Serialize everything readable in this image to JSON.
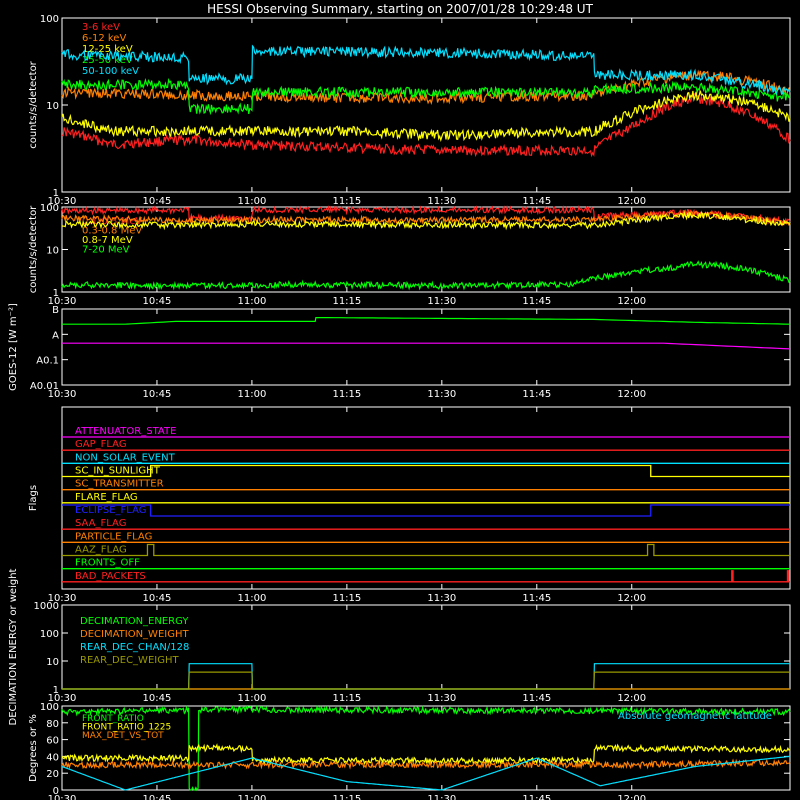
{
  "title": "HESSI Observing Summary, starting on 2007/01/28 10:29:48 UT",
  "time_ticks": [
    "10:30",
    "10:45",
    "11:00",
    "11:15",
    "11:30",
    "11:45",
    "12:00"
  ],
  "time_range_min": [
    0,
    115
  ],
  "chart_data": [
    {
      "id": "low-energy",
      "type": "line",
      "ylabel": "counts/s/detector",
      "yscale": "log",
      "ylim": [
        1,
        100
      ],
      "ytick_labels": [
        "1",
        "10",
        "100"
      ],
      "legend_placement": "top-left",
      "series": [
        {
          "name": "3-6 keV",
          "color": "#ff2020",
          "x": [
            0,
            8,
            20,
            30,
            45,
            60,
            75,
            84,
            90,
            95,
            100,
            105,
            110,
            115
          ],
          "y": [
            5,
            3.5,
            4,
            3.5,
            3.2,
            3,
            3,
            3,
            5.5,
            9,
            12,
            10,
            7,
            4
          ]
        },
        {
          "name": "6-12 keV",
          "color": "#ff8000",
          "x": [
            0,
            20,
            45,
            60,
            84,
            90,
            95,
            100,
            105,
            110,
            115
          ],
          "y": [
            14,
            13,
            12,
            12,
            13,
            17,
            20,
            22,
            21,
            18,
            14
          ]
        },
        {
          "name": "12-25 keV",
          "color": "#ffff00",
          "x": [
            0,
            8,
            20,
            45,
            60,
            84,
            90,
            95,
            100,
            105,
            110,
            115
          ],
          "y": [
            7,
            5,
            5,
            5,
            4.5,
            5,
            8,
            11,
            13,
            12,
            10,
            7
          ]
        },
        {
          "name": "25-50 keV",
          "color": "#00ff00",
          "x": [
            0,
            10,
            20,
            20.1,
            30,
            30.1,
            45,
            60,
            84,
            84.1,
            100,
            115
          ],
          "y": [
            17,
            17,
            17,
            9,
            9,
            14,
            14,
            14,
            14,
            15,
            16,
            12
          ]
        },
        {
          "name": "50-100 keV",
          "color": "#00e0ff",
          "x": [
            0,
            20,
            20.1,
            30,
            30.1,
            60,
            84,
            84.1,
            100,
            115
          ],
          "y": [
            38,
            35,
            20,
            20,
            42,
            40,
            36,
            22,
            22,
            14
          ]
        }
      ]
    },
    {
      "id": "high-energy",
      "type": "line",
      "ylabel": "counts/s/detector",
      "yscale": "log",
      "ylim": [
        1,
        100
      ],
      "ytick_labels": [
        "1",
        "10",
        "100"
      ],
      "legend_placement": "top-left",
      "series": [
        {
          "name": "0.1-0.3 MeV",
          "color": "#ff2020",
          "x": [
            0,
            20,
            20.1,
            30,
            30.1,
            84,
            84.1,
            100,
            115
          ],
          "y": [
            80,
            85,
            55,
            55,
            85,
            85,
            60,
            75,
            45
          ]
        },
        {
          "name": "0.3-0.8 MeV",
          "color": "#ff8000",
          "x": [
            0,
            20,
            30,
            60,
            84,
            100,
            115
          ],
          "y": [
            55,
            48,
            50,
            50,
            50,
            70,
            42
          ]
        },
        {
          "name": "0.8-7 MeV",
          "color": "#ffff00",
          "x": [
            0,
            20,
            30,
            60,
            84,
            100,
            115
          ],
          "y": [
            40,
            37,
            40,
            38,
            37,
            65,
            38
          ]
        },
        {
          "name": "7-20 MeV",
          "color": "#00ff00",
          "x": [
            0,
            20,
            40,
            60,
            80,
            84,
            90,
            95,
            100,
            105,
            110,
            115
          ],
          "y": [
            1.5,
            1.4,
            1.5,
            1.4,
            1.5,
            2,
            3,
            3.5,
            4.5,
            4,
            3,
            1.8
          ]
        }
      ]
    },
    {
      "id": "goes",
      "type": "line",
      "ylabel": "GOES-12 [W m⁻²]",
      "ylim": [
        0,
        4
      ],
      "ytick_labels": [
        "A0.01",
        "A0.1",
        "A",
        "B"
      ],
      "series": [
        {
          "color": "#00ff00",
          "x": [
            0,
            10,
            18,
            40,
            40.1,
            84,
            100,
            115
          ],
          "y": [
            3.2,
            3.2,
            3.35,
            3.35,
            3.55,
            3.45,
            3.3,
            3.2
          ]
        },
        {
          "color": "#ff00ff",
          "x": [
            0,
            95,
            115
          ],
          "y": [
            2.2,
            2.2,
            1.9
          ]
        }
      ]
    },
    {
      "id": "flags",
      "type": "line",
      "ylabel": "Flags",
      "flags": [
        {
          "name": "ATTENUATOR_STATE",
          "color": "#ff00ff",
          "high": []
        },
        {
          "name": "GAP_FLAG",
          "color": "#ff2020",
          "high": []
        },
        {
          "name": "NON_SOLAR_EVENT",
          "color": "#00e0ff",
          "high": []
        },
        {
          "name": "SC_IN_SUNLIGHT",
          "color": "#ffff00",
          "high": [
            [
              14,
              93
            ]
          ]
        },
        {
          "name": "SC_TRANSMITTER",
          "color": "#ff8000",
          "high": []
        },
        {
          "name": "FLARE_FLAG",
          "color": "#ffff00",
          "high": []
        },
        {
          "name": "ECLIPSE_FLAG",
          "color": "#2020ff",
          "high": [
            [
              0,
              14
            ],
            [
              93,
              115
            ]
          ]
        },
        {
          "name": "SAA_FLAG",
          "color": "#ff2020",
          "high": []
        },
        {
          "name": "PARTICLE_FLAG",
          "color": "#ff8000",
          "high": []
        },
        {
          "name": "AAZ_FLAG",
          "color": "#999900",
          "high": [
            [
              13.5,
              14.5
            ],
            [
              92.5,
              93.5
            ]
          ]
        },
        {
          "name": "FRONTS_OFF",
          "color": "#00ff00",
          "high": []
        },
        {
          "name": "BAD_PACKETS",
          "color": "#ff2020",
          "high": [
            [
              105.8,
              106
            ],
            [
              114.6,
              114.8
            ]
          ]
        }
      ]
    },
    {
      "id": "decimation",
      "type": "line",
      "ylabel": "DECIMATION ENERGY or weight",
      "yscale": "log",
      "ylim": [
        1,
        1000
      ],
      "ytick_labels": [
        "1",
        "10",
        "100",
        "1000"
      ],
      "legend_placement": "top-left",
      "series": [
        {
          "name": "DECIMATION_ENERGY",
          "color": "#00ff00",
          "x": [
            0,
            115
          ],
          "y": [
            1,
            1
          ]
        },
        {
          "name": "DECIMATION_WEIGHT",
          "color": "#ff8000",
          "x": [
            0,
            115
          ],
          "y": [
            1,
            1
          ]
        },
        {
          "name": "REAR_DEC_CHAN/128",
          "color": "#00e0ff",
          "x": [
            0,
            20,
            20.1,
            30,
            30.1,
            84,
            84.1,
            115
          ],
          "y": [
            1,
            1,
            8,
            8,
            1,
            1,
            8,
            8
          ]
        },
        {
          "name": "REAR_DEC_WEIGHT",
          "color": "#999900",
          "x": [
            0,
            20,
            20.1,
            30,
            30.1,
            84,
            84.1,
            115
          ],
          "y": [
            1,
            1,
            4,
            4,
            1,
            1,
            4,
            4
          ]
        }
      ]
    },
    {
      "id": "ratios",
      "type": "line",
      "ylabel": "Degrees or %",
      "ylim": [
        0,
        100
      ],
      "ytick_labels": [
        "0",
        "20",
        "40",
        "60",
        "80",
        "100"
      ],
      "legend_placement": "top-left",
      "annotation": "Absolute geomagnetic latitude",
      "series": [
        {
          "name": "FRONT_RATIO",
          "color": "#00ff00",
          "x": [
            0,
            20,
            20.1,
            21.5,
            21.6,
            115
          ],
          "y": [
            93,
            95,
            0,
            0,
            96,
            93
          ]
        },
        {
          "name": "FRONT_RATIO_1225",
          "color": "#ffff00",
          "x": [
            0,
            20,
            20.1,
            30,
            30.1,
            84,
            84.1,
            115
          ],
          "y": [
            38,
            38,
            50,
            50,
            35,
            35,
            50,
            48
          ]
        },
        {
          "name": "MAX_DET_VS_TOT",
          "color": "#ff8000",
          "x": [
            0,
            30,
            60,
            90,
            115
          ],
          "y": [
            30,
            30,
            30,
            30,
            33
          ]
        },
        {
          "name": "Absolute geomagnetic latitude",
          "color": "#00e0ff",
          "x": [
            0,
            10,
            30,
            45,
            60,
            75,
            85,
            100,
            115
          ],
          "y": [
            28,
            0,
            38,
            10,
            0,
            38,
            5,
            28,
            40
          ]
        }
      ]
    }
  ]
}
